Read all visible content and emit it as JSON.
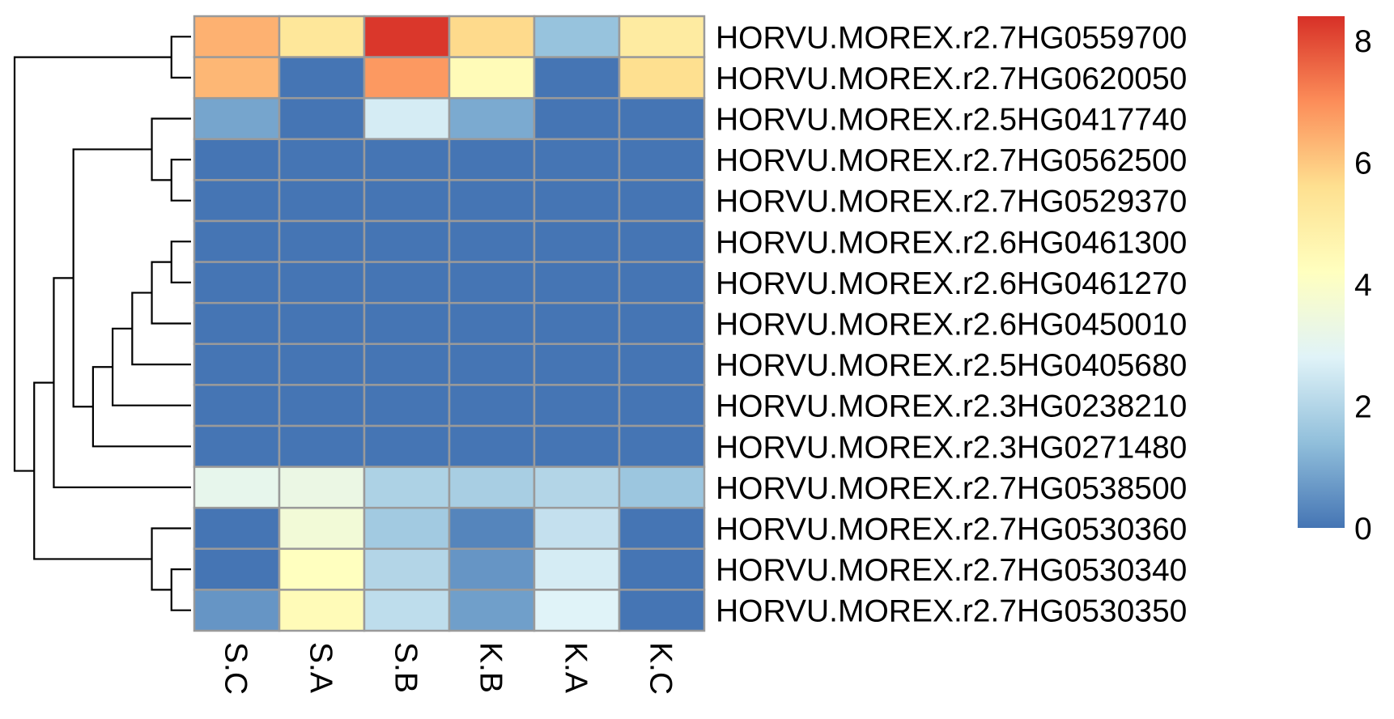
{
  "chart_data": {
    "type": "heatmap",
    "title": "",
    "xlabel": "",
    "ylabel": "",
    "columns": [
      "S.C",
      "S.A",
      "S.B",
      "K.B",
      "K.A",
      "K.C"
    ],
    "rows": [
      "HORVU.MOREX.r2.7HG0559700",
      "HORVU.MOREX.r2.7HG0620050",
      "HORVU.MOREX.r2.5HG0417740",
      "HORVU.MOREX.r2.7HG0562500",
      "HORVU.MOREX.r2.7HG0529370",
      "HORVU.MOREX.r2.6HG0461300",
      "HORVU.MOREX.r2.6HG0461270",
      "HORVU.MOREX.r2.6HG0450010",
      "HORVU.MOREX.r2.5HG0405680",
      "HORVU.MOREX.r2.3HG0238210",
      "HORVU.MOREX.r2.3HG0271480",
      "HORVU.MOREX.r2.7HG0538500",
      "HORVU.MOREX.r2.7HG0530360",
      "HORVU.MOREX.r2.7HG0530340",
      "HORVU.MOREX.r2.7HG0530350"
    ],
    "values": [
      [
        6.4,
        5.3,
        8.3,
        5.7,
        1.5,
        5.1
      ],
      [
        6.3,
        0.0,
        6.8,
        4.4,
        0.0,
        5.6
      ],
      [
        0.9,
        0.0,
        2.6,
        1.0,
        0.0,
        0.0
      ],
      [
        0.0,
        0.0,
        0.0,
        0.0,
        0.0,
        0.0
      ],
      [
        0.0,
        0.0,
        0.0,
        0.0,
        0.0,
        0.0
      ],
      [
        0.0,
        0.0,
        0.0,
        0.0,
        0.0,
        0.0
      ],
      [
        0.0,
        0.0,
        0.0,
        0.0,
        0.0,
        0.0
      ],
      [
        0.0,
        0.0,
        0.0,
        0.0,
        0.0,
        0.0
      ],
      [
        0.0,
        0.0,
        0.0,
        0.0,
        0.0,
        0.0
      ],
      [
        0.0,
        0.0,
        0.0,
        0.0,
        0.0,
        0.0
      ],
      [
        0.0,
        0.0,
        0.0,
        0.0,
        0.0,
        0.0
      ],
      [
        3.1,
        3.3,
        1.9,
        1.8,
        2.0,
        1.6
      ],
      [
        0.0,
        3.6,
        1.7,
        0.3,
        2.3,
        0.0
      ],
      [
        0.0,
        4.2,
        2.0,
        0.6,
        2.6,
        0.0
      ],
      [
        0.6,
        4.4,
        2.2,
        0.8,
        2.8,
        0.0
      ]
    ],
    "color_scale": {
      "min": 0,
      "max": 8.4,
      "stops": [
        "#4575B4",
        "#91BFDB",
        "#E0F3F8",
        "#FFFFBF",
        "#FEE090",
        "#FC8D59",
        "#D73027"
      ]
    },
    "legend": {
      "placement": "right",
      "ticks": [
        "0",
        "2",
        "4",
        "6",
        "8"
      ]
    },
    "cell_border_color": "#9A9A9A",
    "row_dendrogram": {
      "shown": true,
      "merges": [
        [
          1,
          2
        ],
        [
          4,
          5
        ],
        [
          3,
          -2
        ],
        [
          6,
          7
        ],
        [
          8,
          -4
        ],
        [
          9,
          -5
        ],
        [
          10,
          -6
        ],
        [
          11,
          -7
        ],
        [
          -3,
          -8
        ],
        [
          -9,
          12
        ],
        [
          14,
          15
        ],
        [
          13,
          -11
        ],
        [
          -10,
          -12
        ],
        [
          -1,
          -13
        ]
      ]
    }
  }
}
